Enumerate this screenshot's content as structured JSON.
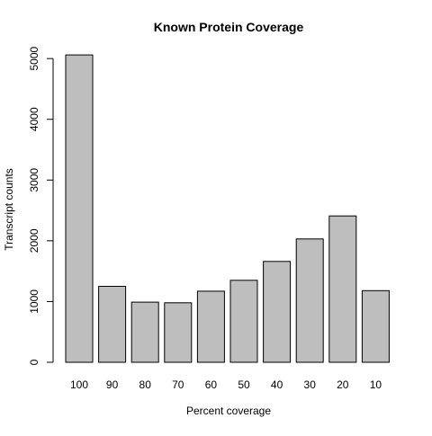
{
  "chart_data": {
    "type": "bar",
    "title": "Known Protein Coverage",
    "xlabel": "Percent coverage",
    "ylabel": "Transcript counts",
    "categories": [
      "100",
      "90",
      "80",
      "70",
      "60",
      "50",
      "40",
      "30",
      "20",
      "10"
    ],
    "values": [
      5060,
      1250,
      990,
      980,
      1170,
      1350,
      1660,
      2030,
      2410,
      1180
    ],
    "ylim": [
      0,
      5000
    ],
    "yticks": [
      0,
      1000,
      2000,
      3000,
      4000,
      5000
    ],
    "grid": false,
    "legend": "none",
    "colors": {
      "bar_fill": "#bebebe",
      "bar_stroke": "#000000",
      "axis": "#000000",
      "background": "#ffffff"
    }
  }
}
